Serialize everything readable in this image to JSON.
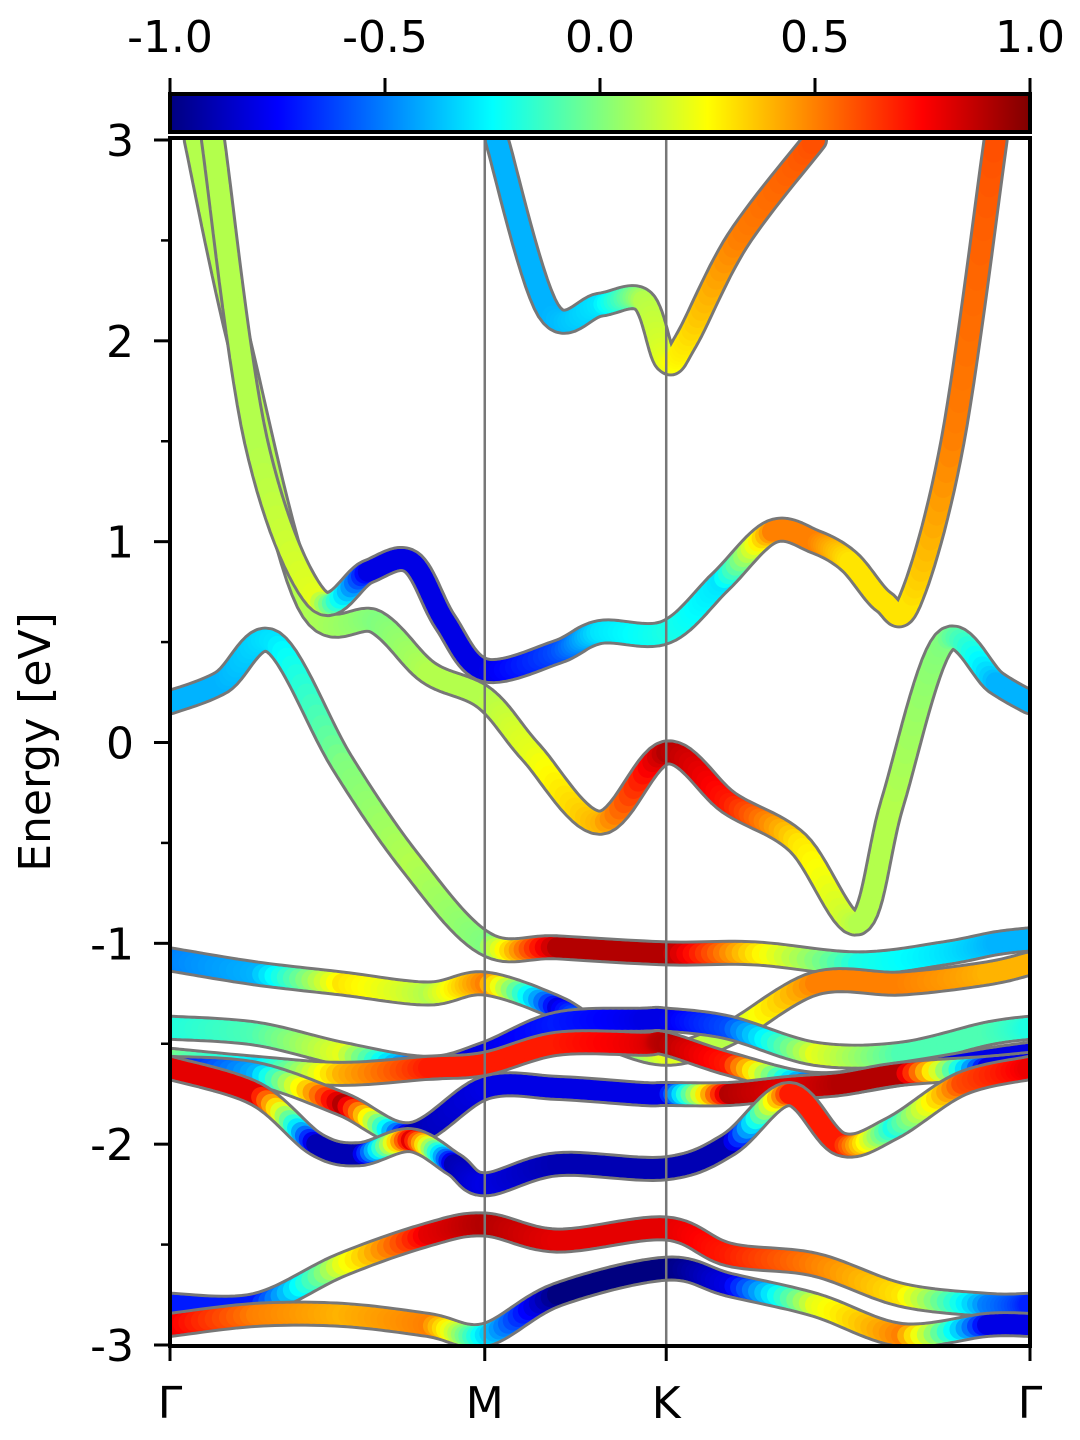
{
  "chart_data": {
    "type": "line",
    "title": "",
    "xlabel": "",
    "ylabel": "Energy [eV]",
    "ylim": [
      -3,
      3
    ],
    "yticks": [
      "3",
      "2",
      "1",
      "0",
      "-1",
      "-2",
      "-3"
    ],
    "ytick_values": [
      3,
      2,
      1,
      0,
      -1,
      -2,
      -3
    ],
    "xticks": [
      {
        "label": "Γ",
        "pos": 0.0
      },
      {
        "label": "M",
        "pos": 0.366
      },
      {
        "label": "K",
        "pos": 0.577
      },
      {
        "label": "Γ",
        "pos": 1.0
      }
    ],
    "grid": false,
    "colorbar": {
      "min": -1.0,
      "max": 1.0,
      "colormap": "jet",
      "ticks": [
        "-1.0",
        "-0.5",
        "0.0",
        "0.5",
        "1.0"
      ],
      "tick_values": [
        -1.0,
        -0.5,
        0.0,
        0.5,
        1.0
      ],
      "placement": "top"
    },
    "series": [
      {
        "x": [
          0.38,
          0.44,
          0.5,
          0.55,
          0.577,
          0.6,
          0.66,
          0.75
        ],
        "y": [
          3.0,
          2.15,
          2.18,
          2.2,
          1.9,
          2.0,
          2.5,
          3.0
        ],
        "c": [
          -0.4,
          -0.4,
          -0.3,
          0.1,
          0.2,
          0.3,
          0.5,
          0.6
        ]
      },
      {
        "x": [
          0.0,
          0.06,
          0.12,
          0.2,
          0.28,
          0.366,
          0.45,
          0.577,
          0.68,
          0.8,
          0.9,
          0.96,
          1.0
        ],
        "y": [
          0.2,
          0.3,
          0.5,
          -0.1,
          -0.6,
          -1.0,
          -1.02,
          -1.05,
          -1.05,
          -1.1,
          -1.05,
          -1.0,
          -0.98
        ],
        "c": [
          -0.4,
          -0.4,
          -0.3,
          0.0,
          0.1,
          0.0,
          0.9,
          0.9,
          0.3,
          -0.2,
          -0.3,
          -0.4,
          -0.4
        ]
      },
      {
        "x": [
          0.03,
          0.08,
          0.16,
          0.24,
          0.3,
          0.366,
          0.42,
          0.5,
          0.577,
          0.65,
          0.73,
          0.8,
          0.84,
          0.9,
          0.96,
          1.0
        ],
        "y": [
          3.0,
          2.0,
          0.7,
          0.6,
          0.35,
          0.22,
          -0.05,
          -0.4,
          -0.05,
          -0.3,
          -0.5,
          -0.9,
          -0.3,
          0.5,
          0.3,
          0.2
        ],
        "c": [
          0.1,
          0.1,
          0.1,
          0.0,
          0.1,
          0.1,
          0.2,
          0.4,
          0.9,
          0.7,
          0.3,
          0.1,
          0.1,
          0.0,
          -0.4,
          -0.4
        ]
      },
      {
        "x": [
          0.05,
          0.1,
          0.17,
          0.23,
          0.28,
          0.32,
          0.366,
          0.45,
          0.5,
          0.577,
          0.64,
          0.7,
          0.75,
          0.79,
          0.83,
          0.86,
          0.91,
          0.96
        ],
        "y": [
          3.0,
          1.5,
          0.72,
          0.85,
          0.9,
          0.6,
          0.36,
          0.45,
          0.55,
          0.55,
          0.8,
          1.05,
          1.0,
          0.9,
          0.7,
          0.7,
          1.5,
          3.0
        ],
        "c": [
          0.1,
          0.1,
          0.2,
          -0.8,
          -0.8,
          -0.8,
          -0.8,
          -0.6,
          -0.3,
          -0.2,
          -0.3,
          0.5,
          0.5,
          0.3,
          0.3,
          0.3,
          0.5,
          0.6
        ]
      },
      {
        "x": [
          0.0,
          0.1,
          0.2,
          0.3,
          0.366,
          0.45,
          0.5,
          0.577,
          0.65,
          0.75,
          0.85,
          0.95,
          1.0
        ],
        "y": [
          -1.08,
          -1.15,
          -1.2,
          -1.25,
          -1.2,
          -1.32,
          -1.45,
          -1.55,
          -1.45,
          -1.2,
          -1.2,
          -1.15,
          -1.1
        ],
        "c": [
          -0.5,
          -0.4,
          0.3,
          0.1,
          0.5,
          -0.8,
          -0.2,
          0.2,
          0.1,
          0.5,
          0.5,
          0.4,
          0.4
        ]
      },
      {
        "x": [
          0.0,
          0.1,
          0.2,
          0.3,
          0.366,
          0.45,
          0.55,
          0.577,
          0.65,
          0.75,
          0.85,
          0.95,
          1.0
        ],
        "y": [
          -1.42,
          -1.45,
          -1.55,
          -1.62,
          -1.55,
          -1.4,
          -1.38,
          -1.38,
          -1.42,
          -1.55,
          -1.55,
          -1.45,
          -1.42
        ],
        "c": [
          -0.2,
          -0.1,
          0.2,
          -0.8,
          -0.8,
          -0.7,
          -0.8,
          -0.8,
          -0.6,
          0.2,
          -0.1,
          -0.1,
          -0.2
        ]
      },
      {
        "x": [
          0.0,
          0.1,
          0.2,
          0.3,
          0.366,
          0.45,
          0.55,
          0.577,
          0.65,
          0.75,
          0.85,
          0.95,
          1.0
        ],
        "y": [
          -1.58,
          -1.62,
          -1.65,
          -1.62,
          -1.6,
          -1.5,
          -1.5,
          -1.5,
          -1.6,
          -1.7,
          -1.65,
          -1.58,
          -1.55
        ],
        "c": [
          0.0,
          -0.3,
          0.4,
          0.7,
          0.7,
          0.7,
          0.8,
          0.9,
          0.7,
          -0.7,
          -0.8,
          -0.8,
          -0.8
        ]
      },
      {
        "x": [
          0.0,
          0.1,
          0.2,
          0.28,
          0.366,
          0.45,
          0.55,
          0.577,
          0.65,
          0.72,
          0.78,
          0.85,
          0.95,
          1.0
        ],
        "y": [
          -1.62,
          -1.65,
          -1.8,
          -1.95,
          -1.72,
          -1.72,
          -1.75,
          -1.75,
          -1.75,
          -1.72,
          -1.7,
          -1.65,
          -1.62,
          -1.6
        ],
        "c": [
          -0.8,
          -0.4,
          0.9,
          -0.9,
          -0.8,
          -0.8,
          -0.8,
          -0.8,
          0.9,
          0.8,
          0.9,
          0.9,
          -0.8,
          -0.8
        ]
      },
      {
        "x": [
          0.0,
          0.1,
          0.17,
          0.22,
          0.28,
          0.33,
          0.366,
          0.45,
          0.577,
          0.65,
          0.72,
          0.78,
          0.84,
          0.92,
          1.0
        ],
        "y": [
          -1.62,
          -1.75,
          -2.0,
          -2.05,
          -1.98,
          -2.1,
          -2.2,
          -2.1,
          -2.12,
          -2.0,
          -1.75,
          -2.0,
          -1.92,
          -1.7,
          -1.62
        ],
        "c": [
          0.8,
          0.8,
          -0.9,
          -0.9,
          0.8,
          -0.9,
          -0.8,
          -0.9,
          -0.9,
          -0.9,
          0.7,
          0.7,
          -0.2,
          0.6,
          0.8
        ]
      },
      {
        "x": [
          0.0,
          0.1,
          0.2,
          0.3,
          0.366,
          0.45,
          0.577,
          0.65,
          0.75,
          0.85,
          0.95,
          1.0
        ],
        "y": [
          -2.8,
          -2.8,
          -2.6,
          -2.45,
          -2.4,
          -2.48,
          -2.42,
          -2.55,
          -2.6,
          -2.75,
          -2.8,
          -2.8
        ],
        "c": [
          -0.7,
          -0.7,
          0.2,
          0.8,
          0.9,
          0.8,
          0.8,
          0.7,
          0.5,
          0.3,
          -0.5,
          -0.7
        ]
      },
      {
        "x": [
          0.0,
          0.1,
          0.2,
          0.3,
          0.366,
          0.45,
          0.577,
          0.65,
          0.75,
          0.85,
          0.95,
          1.0
        ],
        "y": [
          -2.9,
          -2.85,
          -2.85,
          -2.9,
          -2.95,
          -2.75,
          -2.62,
          -2.7,
          -2.8,
          -2.95,
          -2.9,
          -2.9
        ],
        "c": [
          0.8,
          0.5,
          0.4,
          0.5,
          -0.3,
          -1.0,
          -1.0,
          -0.8,
          0.2,
          0.5,
          -0.8,
          -0.8
        ]
      }
    ]
  }
}
